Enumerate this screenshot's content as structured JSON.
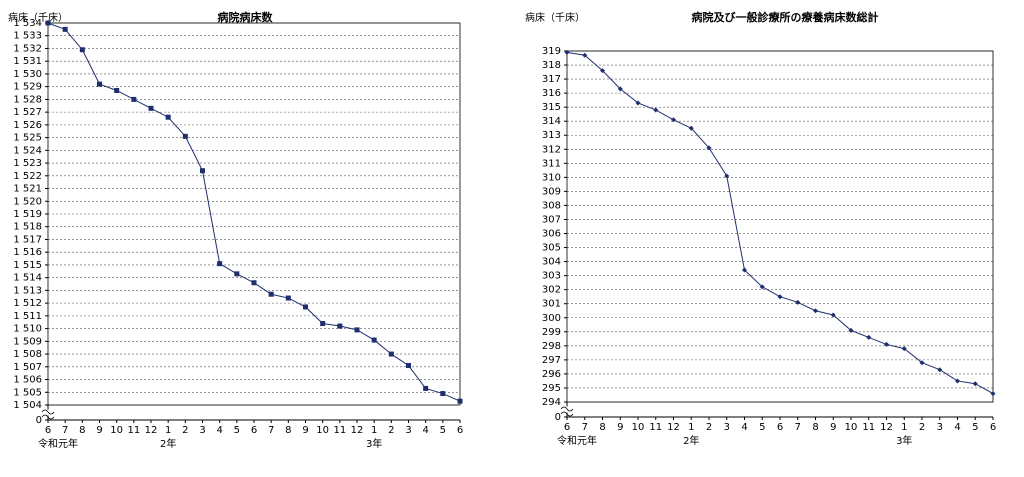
{
  "chart_data": [
    {
      "type": "line",
      "title": "病院病床数",
      "y_label": "病床（千床）",
      "categories": [
        "6",
        "7",
        "8",
        "9",
        "10",
        "11",
        "12",
        "1",
        "2",
        "3",
        "4",
        "5",
        "6",
        "7",
        "8",
        "9",
        "10",
        "11",
        "12",
        "1",
        "2",
        "3",
        "4",
        "5",
        "6"
      ],
      "x_groups": [
        {
          "label": "令和元年",
          "start": 0
        },
        {
          "label": "2年",
          "start": 7
        },
        {
          "label": "3年",
          "start": 19
        }
      ],
      "series": [
        {
          "color": "#1f2f6e",
          "marker": "square",
          "values": [
            1534.0,
            1533.5,
            1531.9,
            1529.2,
            1528.7,
            1528.0,
            1527.3,
            1526.6,
            1525.1,
            1522.4,
            1515.1,
            1514.3,
            1513.6,
            1512.7,
            1512.4,
            1511.7,
            1510.4,
            1510.2,
            1509.9,
            1509.1,
            1508.0,
            1507.1,
            1505.3,
            1504.9,
            1504.3
          ]
        }
      ],
      "ylim": [
        1504,
        1534
      ],
      "axis_break": true,
      "grid": true,
      "yticks": [
        {
          "value": 0,
          "label": "0"
        },
        {
          "value": 1504,
          "label": "1 504"
        },
        {
          "value": 1505,
          "label": "1 505"
        },
        {
          "value": 1506,
          "label": "1 506"
        },
        {
          "value": 1507,
          "label": "1 507"
        },
        {
          "value": 1508,
          "label": "1 508"
        },
        {
          "value": 1509,
          "label": "1 509"
        },
        {
          "value": 1510,
          "label": "1 510"
        },
        {
          "value": 1511,
          "label": "1 511"
        },
        {
          "value": 1512,
          "label": "1 512"
        },
        {
          "value": 1513,
          "label": "1 513"
        },
        {
          "value": 1514,
          "label": "1 514"
        },
        {
          "value": 1515,
          "label": "1 515"
        },
        {
          "value": 1516,
          "label": "1 516"
        },
        {
          "value": 1517,
          "label": "1 517"
        },
        {
          "value": 1518,
          "label": "1 518"
        },
        {
          "value": 1519,
          "label": "1 519"
        },
        {
          "value": 1520,
          "label": "1 520"
        },
        {
          "value": 1521,
          "label": "1 521"
        },
        {
          "value": 1522,
          "label": "1 522"
        },
        {
          "value": 1523,
          "label": "1 523"
        },
        {
          "value": 1524,
          "label": "1 524"
        },
        {
          "value": 1525,
          "label": "1 525"
        },
        {
          "value": 1526,
          "label": "1 526"
        },
        {
          "value": 1527,
          "label": "1 527"
        },
        {
          "value": 1528,
          "label": "1 528"
        },
        {
          "value": 1529,
          "label": "1 529"
        },
        {
          "value": 1530,
          "label": "1 530"
        },
        {
          "value": 1531,
          "label": "1 531"
        },
        {
          "value": 1532,
          "label": "1 532"
        },
        {
          "value": 1533,
          "label": "1 533"
        },
        {
          "value": 1534,
          "label": "1 534"
        }
      ]
    },
    {
      "type": "line",
      "title": "病院及び一般診療所の療養病床数総計",
      "y_label": "病床（千床）",
      "categories": [
        "6",
        "7",
        "8",
        "9",
        "10",
        "11",
        "12",
        "1",
        "2",
        "3",
        "4",
        "5",
        "6",
        "7",
        "8",
        "9",
        "10",
        "11",
        "12",
        "1",
        "2",
        "3",
        "4",
        "5",
        "6"
      ],
      "x_groups": [
        {
          "label": "令和元年",
          "start": 0
        },
        {
          "label": "2年",
          "start": 7
        },
        {
          "label": "3年",
          "start": 19
        }
      ],
      "series": [
        {
          "color": "#1f2f6e",
          "marker": "diamond",
          "values": [
            318.9,
            318.7,
            317.6,
            316.3,
            315.3,
            314.8,
            314.1,
            313.5,
            312.1,
            310.1,
            303.4,
            302.2,
            301.5,
            301.1,
            300.5,
            300.2,
            299.1,
            298.6,
            298.1,
            297.8,
            296.8,
            296.3,
            295.5,
            295.3,
            294.6
          ]
        }
      ],
      "ylim": [
        294,
        319
      ],
      "axis_break": true,
      "grid": true,
      "yticks": [
        0,
        294,
        295,
        296,
        297,
        298,
        299,
        300,
        301,
        302,
        303,
        304,
        305,
        306,
        307,
        308,
        309,
        310,
        311,
        312,
        313,
        314,
        315,
        316,
        317,
        318,
        319
      ]
    }
  ]
}
